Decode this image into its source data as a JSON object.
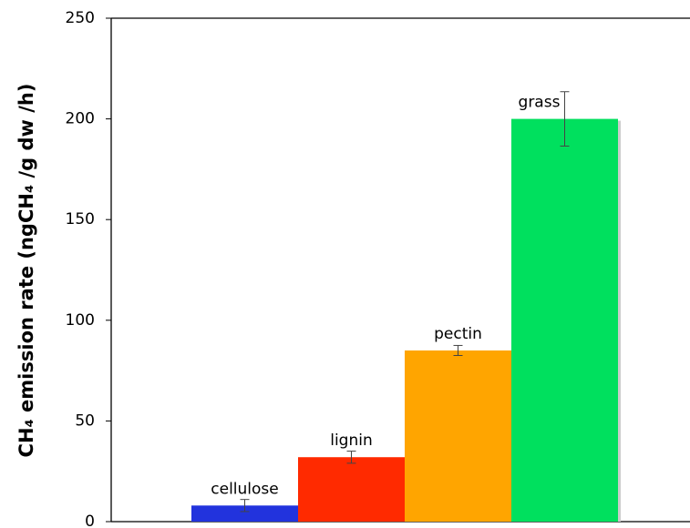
{
  "chart_data": {
    "type": "bar",
    "y_label": "CH₄ emission rate (ngCH₄ /g dw /h)",
    "categories": [
      "cellulose",
      "lignin",
      "pectin",
      "grass"
    ],
    "values": [
      8,
      32,
      85,
      200
    ],
    "errors": [
      3,
      3,
      2.5,
      13.5
    ],
    "colors": [
      "#2233dd",
      "#ff2a00",
      "#ffa500",
      "#00e05e"
    ],
    "ylim": [
      0,
      250
    ],
    "yticks": [
      0,
      50,
      100,
      150,
      200,
      250
    ]
  }
}
